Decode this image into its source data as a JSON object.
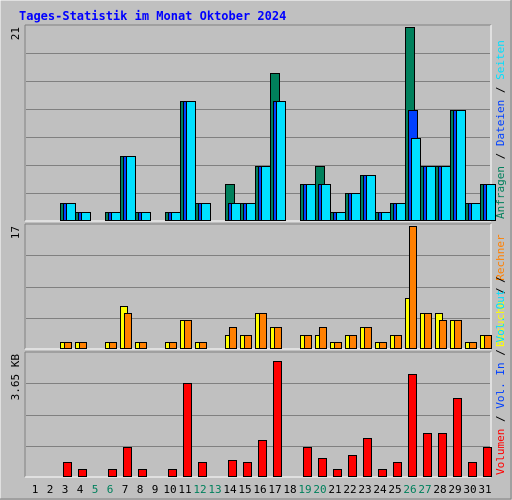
{
  "title": "Tages-Statistik im Monat Oktober 2024",
  "colors": {
    "background": "#c0c0c0",
    "plot": "#c0c0c0",
    "grid": "#808080",
    "title": "#0000ff",
    "hits": "#00805c",
    "files": "#0040ff",
    "pages": "#00e0ff",
    "visits": "#ffff00",
    "sites": "#ff8000",
    "volume": "#ff0000",
    "weekday": "#000000",
    "weekend": "#00805c"
  },
  "chart_data": [
    {
      "type": "bar",
      "name": "hits-files-pages",
      "y_max_label": "21",
      "y_max": 21,
      "legend": [
        {
          "label": "Anfragen",
          "color": "#00805c"
        },
        {
          "label": "Dateien",
          "color": "#0040ff"
        },
        {
          "label": "Seiten",
          "color": "#00e0ff"
        }
      ],
      "separators": [
        "/",
        "/"
      ],
      "series": [
        {
          "name": "Anfragen",
          "values": [
            0,
            0,
            2,
            1,
            0,
            1,
            7,
            1,
            0,
            1,
            13,
            2,
            0,
            4,
            2,
            6,
            16,
            0,
            4,
            6,
            1,
            3,
            5,
            1,
            2,
            21,
            6,
            6,
            12,
            2,
            4
          ]
        },
        {
          "name": "Dateien",
          "values": [
            0,
            0,
            2,
            1,
            0,
            1,
            7,
            1,
            0,
            1,
            13,
            2,
            0,
            2,
            2,
            6,
            13,
            0,
            4,
            4,
            1,
            3,
            5,
            1,
            2,
            12,
            6,
            6,
            12,
            2,
            4
          ]
        },
        {
          "name": "Seiten",
          "values": [
            0,
            0,
            2,
            1,
            0,
            1,
            7,
            1,
            0,
            1,
            13,
            2,
            0,
            2,
            2,
            6,
            13,
            0,
            4,
            4,
            1,
            3,
            5,
            1,
            2,
            9,
            6,
            6,
            12,
            2,
            4
          ]
        }
      ]
    },
    {
      "type": "bar",
      "name": "visits-sites",
      "y_max_label": "17",
      "y_max": 17,
      "legend": [
        {
          "label": "Besuche",
          "color": "#ffff00"
        },
        {
          "label": "Rechner",
          "color": "#ff8000"
        }
      ],
      "separators": [
        "/"
      ],
      "series": [
        {
          "name": "Besuche",
          "values": [
            0,
            0,
            1,
            1,
            0,
            1,
            6,
            1,
            0,
            1,
            4,
            1,
            0,
            2,
            2,
            5,
            3,
            0,
            2,
            2,
            1,
            2,
            3,
            1,
            2,
            7,
            5,
            5,
            4,
            1,
            2
          ]
        },
        {
          "name": "Rechner",
          "values": [
            0,
            0,
            1,
            1,
            0,
            1,
            5,
            1,
            0,
            1,
            4,
            1,
            0,
            3,
            2,
            5,
            3,
            0,
            2,
            3,
            1,
            2,
            3,
            1,
            2,
            17,
            5,
            4,
            4,
            1,
            2
          ]
        }
      ]
    },
    {
      "type": "bar",
      "name": "volume",
      "y_max_label": "3.65 KB",
      "y_max": 3.65,
      "legend": [
        {
          "label": "Volumen",
          "color": "#ff0000"
        },
        {
          "label": "Vol. In",
          "color": "#0040ff"
        },
        {
          "label": "Vol. Out",
          "color": "#00e0ff"
        }
      ],
      "separators": [
        "/",
        "/",
        "/"
      ],
      "series": [
        {
          "name": "Volumen",
          "values": [
            0,
            0,
            0.45,
            0.25,
            0,
            0.25,
            0.9,
            0.25,
            0,
            0.25,
            2.8,
            0.45,
            0,
            0.5,
            0.45,
            1.1,
            3.45,
            0,
            0.9,
            0.55,
            0.25,
            0.65,
            1.15,
            0.25,
            0.45,
            3.05,
            1.3,
            1.3,
            2.35,
            0.45,
            0.9
          ]
        }
      ]
    }
  ],
  "x_axis": {
    "labels": [
      "1",
      "2",
      "3",
      "4",
      "5",
      "6",
      "7",
      "8",
      "9",
      "10",
      "11",
      "12",
      "13",
      "14",
      "15",
      "16",
      "17",
      "18",
      "19",
      "20",
      "21",
      "22",
      "23",
      "24",
      "25",
      "26",
      "27",
      "28",
      "29",
      "30",
      "31"
    ],
    "weekend": [
      5,
      6,
      12,
      13,
      19,
      20,
      26,
      27
    ]
  }
}
